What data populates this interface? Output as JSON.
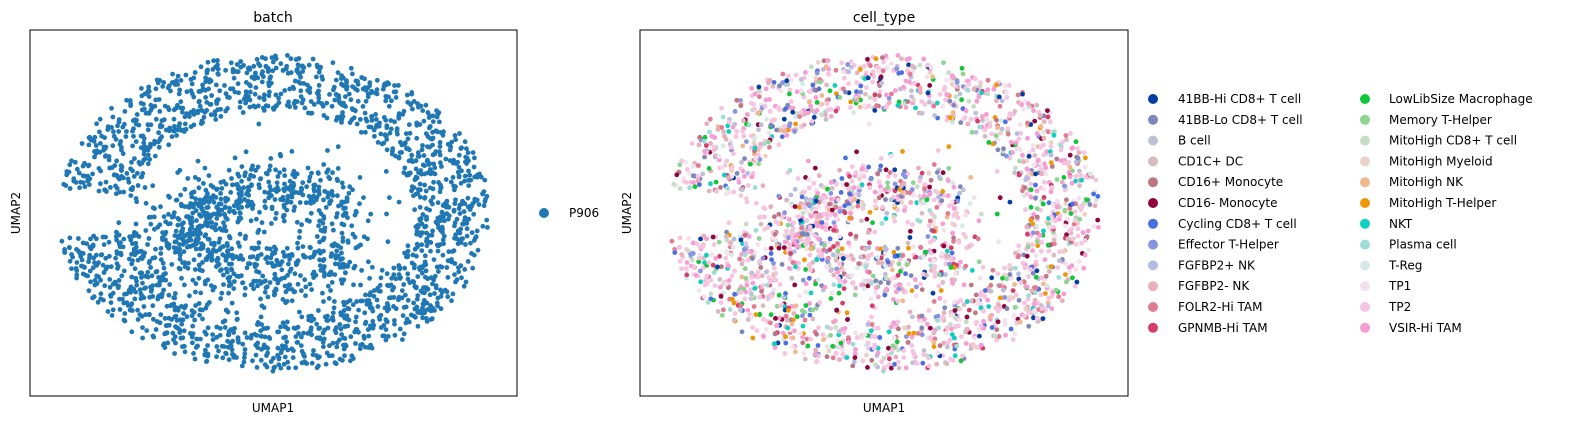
{
  "chart_data": [
    {
      "type": "scatter",
      "title": "batch",
      "xlabel": "UMAP1",
      "ylabel": "UMAP2",
      "grid": false,
      "ticks": false,
      "legend_position": "right",
      "n_points_approx": 2600,
      "series": [
        {
          "name": "P906",
          "color": "#1f77b4"
        }
      ],
      "shape": "ring with inner crescent lobe"
    },
    {
      "type": "scatter",
      "title": "cell_type",
      "xlabel": "UMAP1",
      "ylabel": "UMAP2",
      "grid": false,
      "ticks": false,
      "legend_position": "right",
      "legend_columns": 2,
      "n_points_approx": 2600,
      "series": [
        {
          "name": "41BB-Hi CD8+ T cell",
          "color": "#023fa5"
        },
        {
          "name": "41BB-Lo CD8+ T cell",
          "color": "#7d87b9"
        },
        {
          "name": "B cell",
          "color": "#bec1d4"
        },
        {
          "name": "CD1C+ DC",
          "color": "#d6bcc0"
        },
        {
          "name": "CD16+ Monocyte",
          "color": "#bb7784"
        },
        {
          "name": "CD16- Monocyte",
          "color": "#8e063b"
        },
        {
          "name": "Cycling CD8+ T cell",
          "color": "#4a6fe3"
        },
        {
          "name": "Effector T-Helper",
          "color": "#8595e1"
        },
        {
          "name": "FGFBP2+ NK",
          "color": "#b5bbe3"
        },
        {
          "name": "FGFBP2- NK",
          "color": "#e6afb9"
        },
        {
          "name": "FOLR2-Hi TAM",
          "color": "#e07b91"
        },
        {
          "name": "GPNMB-Hi TAM",
          "color": "#d33f6a"
        },
        {
          "name": "LowLibSize Macrophage",
          "color": "#11c638"
        },
        {
          "name": "Memory T-Helper",
          "color": "#8dd593"
        },
        {
          "name": "MitoHigh CD8+ T cell",
          "color": "#c6dec7"
        },
        {
          "name": "MitoHigh Myeloid",
          "color": "#ead3c6"
        },
        {
          "name": "MitoHigh NK",
          "color": "#f0b98d"
        },
        {
          "name": "MitoHigh T-Helper",
          "color": "#ef9708"
        },
        {
          "name": "NKT",
          "color": "#0fcfc0"
        },
        {
          "name": "Plasma cell",
          "color": "#9cded6"
        },
        {
          "name": "T-Reg",
          "color": "#d5eae7"
        },
        {
          "name": "TP1",
          "color": "#f3e1eb"
        },
        {
          "name": "TP2",
          "color": "#f6c4e1"
        },
        {
          "name": "VSIR-Hi TAM",
          "color": "#f79cd4"
        }
      ]
    }
  ]
}
